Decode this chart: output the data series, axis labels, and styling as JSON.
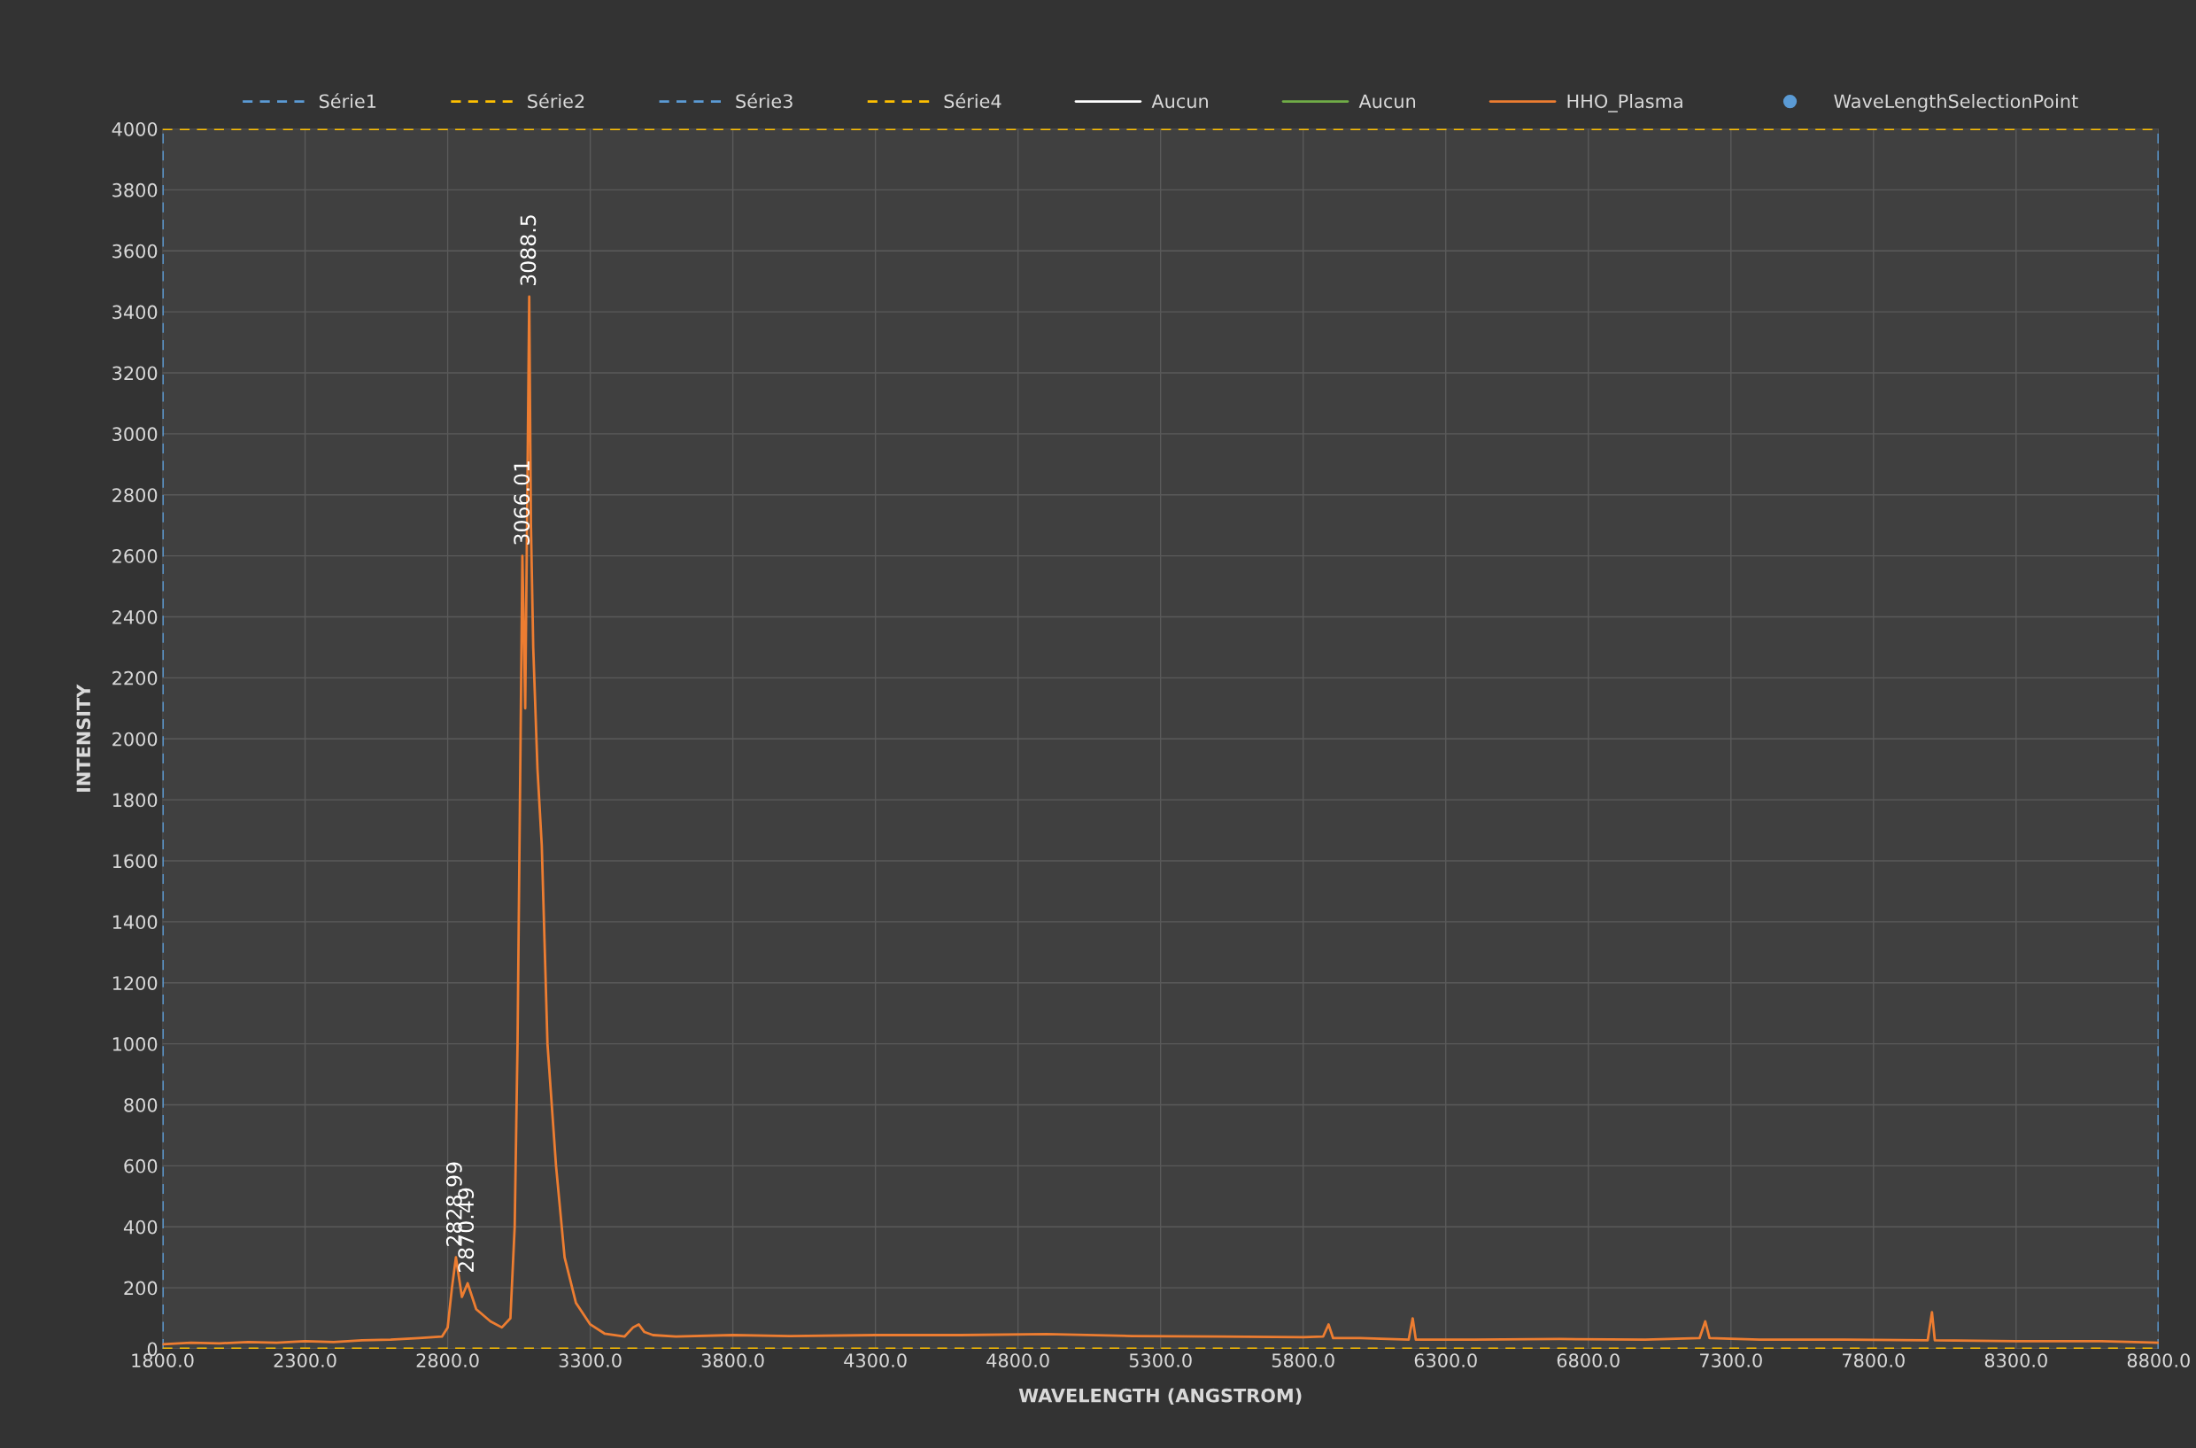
{
  "chart_data": {
    "type": "line",
    "xlabel": "WAVELENGTH (ANGSTROM)",
    "ylabel": "INTENSITY",
    "xlim": [
      1800,
      8800
    ],
    "ylim": [
      0,
      4000
    ],
    "xticks": [
      {
        "value": 1800,
        "label": "1800.0"
      },
      {
        "value": 2300,
        "label": "2300.0"
      },
      {
        "value": 2800,
        "label": "2800.0"
      },
      {
        "value": 3300,
        "label": "3300.0"
      },
      {
        "value": 3800,
        "label": "3800.0"
      },
      {
        "value": 4300,
        "label": "4300.0"
      },
      {
        "value": 4800,
        "label": "4800.0"
      },
      {
        "value": 5300,
        "label": "5300.0"
      },
      {
        "value": 5800,
        "label": "5800.0"
      },
      {
        "value": 6300,
        "label": "6300.0"
      },
      {
        "value": 6800,
        "label": "6800.0"
      },
      {
        "value": 7300,
        "label": "7300.0"
      },
      {
        "value": 7800,
        "label": "7800.0"
      },
      {
        "value": 8300,
        "label": "8300.0"
      },
      {
        "value": 8800,
        "label": "8800.0"
      }
    ],
    "yticks": [
      0,
      200,
      400,
      600,
      800,
      1000,
      1200,
      1400,
      1600,
      1800,
      2000,
      2200,
      2400,
      2600,
      2800,
      3000,
      3200,
      3400,
      3600,
      3800,
      4000
    ],
    "grid": true,
    "legend": "top",
    "series": [
      {
        "name": "Série1",
        "color": "#5b9bd5",
        "line_style": "dashed",
        "x": [
          1800,
          1800
        ],
        "values": [
          0,
          4000
        ]
      },
      {
        "name": "Série2",
        "color": "#ffc000",
        "line_style": "dashed",
        "x": [
          1800,
          8800
        ],
        "values": [
          4000,
          4000
        ]
      },
      {
        "name": "Série3",
        "color": "#5b9bd5",
        "line_style": "dashed",
        "x": [
          8800,
          8800
        ],
        "values": [
          0,
          4000
        ]
      },
      {
        "name": "Série4",
        "color": "#ffc000",
        "line_style": "dashed",
        "x": [
          1800,
          8800
        ],
        "values": [
          0,
          0
        ]
      },
      {
        "name": "Aucun",
        "color": "#ffffff",
        "line_style": "solid"
      },
      {
        "name": "Aucun",
        "color": "#70ad47",
        "line_style": "solid"
      },
      {
        "name": "HHO_Plasma",
        "color": "#ed7d31",
        "line_style": "solid",
        "x": [
          1800,
          1900,
          2000,
          2100,
          2200,
          2300,
          2400,
          2500,
          2600,
          2700,
          2780,
          2800,
          2815,
          2829,
          2850,
          2870,
          2900,
          2950,
          2990,
          3020,
          3035,
          3045,
          3062,
          3072,
          3086,
          3092,
          3100,
          3115,
          3130,
          3150,
          3180,
          3210,
          3250,
          3300,
          3350,
          3420,
          3450,
          3470,
          3490,
          3520,
          3600,
          3800,
          4000,
          4300,
          4600,
          4900,
          5200,
          5500,
          5800,
          5870,
          5889,
          5905,
          6000,
          6170,
          6184,
          6195,
          6400,
          6700,
          7000,
          7190,
          7210,
          7225,
          7400,
          7700,
          7990,
          8005,
          8015,
          8300,
          8600,
          8800
        ],
        "values": [
          15,
          20,
          18,
          22,
          20,
          25,
          22,
          28,
          30,
          35,
          40,
          70,
          200,
          300,
          170,
          215,
          130,
          90,
          70,
          100,
          400,
          1000,
          2600,
          2100,
          3450,
          2700,
          2300,
          1900,
          1650,
          1000,
          600,
          300,
          150,
          80,
          50,
          40,
          70,
          80,
          55,
          45,
          40,
          45,
          42,
          45,
          45,
          48,
          42,
          40,
          38,
          40,
          80,
          35,
          35,
          30,
          100,
          30,
          30,
          32,
          30,
          35,
          90,
          35,
          30,
          30,
          28,
          120,
          28,
          25,
          25,
          20
        ]
      },
      {
        "name": "WaveLengthSelectionPoint",
        "type": "scatter",
        "color": "#5b9bd5",
        "marker": "circle"
      }
    ],
    "annotations": [
      {
        "text": "3088.5",
        "x": 3088.5,
        "y": 3450
      },
      {
        "text": "3066.01",
        "x": 3066.01,
        "y": 2600
      },
      {
        "text": "2828.99",
        "x": 2828.99,
        "y": 300
      },
      {
        "text": "2870.49",
        "x": 2870.49,
        "y": 215
      }
    ]
  }
}
